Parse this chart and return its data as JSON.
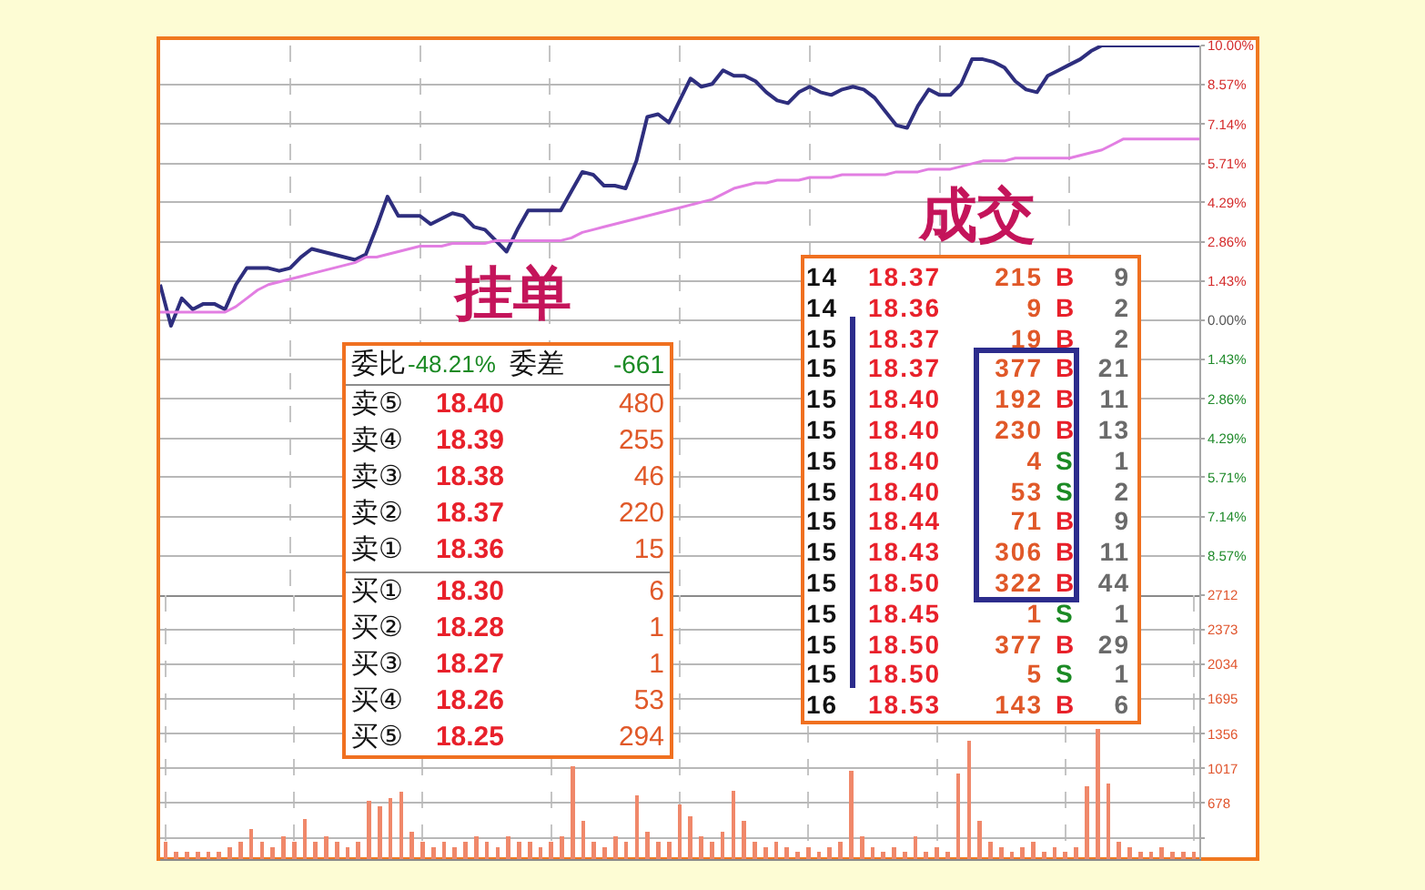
{
  "chart_data": [
    {
      "type": "line",
      "categories": [
        null,
        null,
        null,
        null,
        null,
        null,
        null,
        null,
        null,
        null,
        null,
        null,
        null,
        null,
        null,
        null,
        null,
        null,
        null,
        null,
        null,
        null,
        null,
        null,
        null,
        null,
        null,
        null,
        null,
        null,
        null,
        null,
        null,
        null,
        null,
        null,
        null,
        null,
        null,
        null,
        null,
        null,
        null,
        null,
        null,
        null,
        null,
        null,
        null,
        null,
        null,
        null,
        null,
        null,
        null,
        null,
        null,
        null,
        null,
        null,
        null,
        null,
        null,
        null,
        null,
        null,
        null,
        null,
        null,
        null,
        null,
        null,
        null,
        null,
        null,
        null,
        null,
        null,
        null,
        null,
        null,
        null,
        null,
        null,
        null,
        null,
        null,
        null,
        null,
        null,
        null,
        null,
        null,
        null,
        null,
        null,
        null
      ],
      "series": [
        {
          "color": "#2e2e7e",
          "values": [
            1.3,
            -0.2,
            0.8,
            0.4,
            0.6,
            0.6,
            0.4,
            1.3,
            1.9,
            1.9,
            1.9,
            1.8,
            1.9,
            2.3,
            2.6,
            2.5,
            2.4,
            2.3,
            2.2,
            2.4,
            3.4,
            4.5,
            3.8,
            3.8,
            3.8,
            3.5,
            3.7,
            3.9,
            3.8,
            3.4,
            3.3,
            2.9,
            2.5,
            3.3,
            4.0,
            4.0,
            4.0,
            4.0,
            4.7,
            5.4,
            5.3,
            4.9,
            4.9,
            4.8,
            5.8,
            7.4,
            7.5,
            7.2,
            8.0,
            8.8,
            8.5,
            8.6,
            9.1,
            8.9,
            8.9,
            8.7,
            8.3,
            8.0,
            7.9,
            8.3,
            8.5,
            8.3,
            8.2,
            8.4,
            8.5,
            8.4,
            8.1,
            7.6,
            7.1,
            7.0,
            7.8,
            8.4,
            8.2,
            8.2,
            8.6,
            9.5,
            9.5,
            9.4,
            9.2,
            8.7,
            8.4,
            8.3,
            8.9,
            9.1,
            9.3,
            9.5,
            9.8,
            10.0,
            10.0,
            10.0,
            10.0,
            10.0,
            10.0,
            10.0,
            10.0,
            10.0,
            10.0
          ]
        },
        {
          "color": "#e27ee2",
          "values": [
            0.3,
            0.3,
            0.3,
            0.3,
            0.3,
            0.3,
            0.3,
            0.5,
            0.8,
            1.1,
            1.3,
            1.4,
            1.5,
            1.6,
            1.7,
            1.8,
            1.9,
            2.0,
            2.1,
            2.3,
            2.3,
            2.4,
            2.5,
            2.6,
            2.7,
            2.7,
            2.7,
            2.8,
            2.8,
            2.8,
            2.8,
            2.9,
            2.9,
            2.9,
            2.9,
            2.9,
            2.9,
            2.9,
            3.0,
            3.2,
            3.3,
            3.4,
            3.5,
            3.6,
            3.7,
            3.8,
            3.9,
            4.0,
            4.1,
            4.2,
            4.3,
            4.4,
            4.6,
            4.8,
            4.9,
            5.0,
            5.0,
            5.1,
            5.1,
            5.1,
            5.2,
            5.2,
            5.2,
            5.3,
            5.3,
            5.3,
            5.3,
            5.3,
            5.4,
            5.4,
            5.4,
            5.5,
            5.5,
            5.5,
            5.6,
            5.7,
            5.8,
            5.8,
            5.8,
            5.9,
            5.9,
            5.9,
            5.9,
            5.9,
            5.9,
            6.0,
            6.1,
            6.2,
            6.4,
            6.6,
            6.6,
            6.6,
            6.6,
            6.6,
            6.6,
            6.6,
            6.6
          ]
        }
      ],
      "ylim": [
        -10,
        10
      ],
      "yticks": [
        {
          "value": -8.57,
          "label": "8.57%"
        },
        {
          "value": -7.14,
          "label": "7.14%"
        },
        {
          "value": -5.71,
          "label": "5.71%"
        },
        {
          "value": -4.29,
          "label": "4.29%"
        },
        {
          "value": -2.86,
          "label": "2.86%"
        },
        {
          "value": -1.43,
          "label": "1.43%"
        },
        {
          "value": 0,
          "label": "0.00%"
        },
        {
          "value": 1.43,
          "label": "1.43%"
        },
        {
          "value": 2.86,
          "label": "2.86%"
        },
        {
          "value": 4.29,
          "label": "4.29%"
        },
        {
          "value": 5.71,
          "label": "5.71%"
        },
        {
          "value": 7.14,
          "label": "7.14%"
        },
        {
          "value": 8.57,
          "label": "8.57%"
        },
        {
          "value": 10,
          "label": "10.00%"
        }
      ],
      "grid": true,
      "tick_labels": "y"
    },
    {
      "type": "bar",
      "categories": [
        null,
        null,
        null,
        null,
        null,
        null,
        null,
        null,
        null,
        null,
        null,
        null,
        null,
        null,
        null,
        null,
        null,
        null,
        null,
        null,
        null,
        null,
        null,
        null,
        null,
        null,
        null,
        null,
        null,
        null,
        null,
        null,
        null,
        null,
        null,
        null,
        null,
        null,
        null,
        null,
        null,
        null,
        null,
        null,
        null,
        null,
        null,
        null,
        null,
        null,
        null,
        null,
        null,
        null,
        null,
        null,
        null,
        null,
        null,
        null,
        null,
        null,
        null,
        null,
        null,
        null,
        null,
        null,
        null,
        null,
        null,
        null,
        null,
        null,
        null,
        null,
        null,
        null,
        null,
        null,
        null,
        null,
        null,
        null,
        null,
        null,
        null,
        null,
        null,
        null,
        null,
        null,
        null,
        null,
        null,
        null,
        null
      ],
      "values": [
        300,
        200,
        200,
        200,
        200,
        200,
        250,
        300,
        420,
        300,
        250,
        350,
        300,
        520,
        300,
        350,
        300,
        250,
        300,
        700,
        650,
        730,
        790,
        400,
        300,
        250,
        300,
        250,
        300,
        350,
        300,
        250,
        350,
        300,
        300,
        250,
        300,
        350,
        1040,
        500,
        300,
        250,
        350,
        300,
        750,
        400,
        300,
        300,
        660,
        550,
        350,
        300,
        400,
        800,
        500,
        300,
        250,
        300,
        250,
        200,
        250,
        200,
        250,
        300,
        990,
        350,
        250,
        200,
        250,
        200,
        350,
        200,
        250,
        200,
        970,
        1290,
        500,
        300,
        250,
        200,
        250,
        300,
        200,
        250,
        200,
        250,
        840,
        1400,
        870,
        300,
        250,
        200,
        200,
        250,
        200,
        200,
        200
      ],
      "color": "#f0886a",
      "ylim": [
        130,
        2712
      ],
      "yticks": [
        {
          "value": 339,
          "label": null
        },
        678,
        1017,
        1356,
        1695,
        2034,
        2373,
        2712
      ],
      "grid": true,
      "tick_labels": "y"
    },
    {
      "type": "other",
      "title": "挂单",
      "annotations": [
        "委比",
        "-48.21%",
        "委差",
        "-661"
      ],
      "categories": [
        "卖⑤",
        "卖④",
        "卖③",
        "卖②",
        "卖①",
        "买①",
        "买②",
        "买③",
        "买④",
        "买⑤"
      ],
      "series": [
        {
          "color": "#e8202a",
          "values": [
            null,
            null,
            null,
            null,
            null,
            null,
            null,
            null,
            null,
            null
          ],
          "value_labels": [
            "18.40",
            "18.39",
            "18.38",
            "18.37",
            "18.36",
            "18.30",
            "18.28",
            "18.27",
            "18.26",
            "18.25"
          ]
        },
        {
          "color": "#e05828",
          "values": [
            480,
            255,
            46,
            220,
            15,
            6,
            1,
            1,
            53,
            294
          ]
        }
      ],
      "data_labels": true
    },
    {
      "type": "other",
      "title": "成交",
      "categories": [
        "14",
        "14",
        "15",
        "15",
        "15",
        "15",
        "15",
        "15",
        "15",
        "15",
        "15",
        "15",
        "15",
        "15",
        "16"
      ],
      "series": [
        {
          "color": "#e8202a",
          "values": [
            null,
            null,
            null,
            null,
            null,
            null,
            null,
            null,
            null,
            null,
            null,
            null,
            null,
            null,
            null
          ],
          "value_labels": [
            "18.37",
            "18.36",
            "18.37",
            "18.37",
            "18.40",
            "18.40",
            "18.40",
            "18.40",
            "18.44",
            "18.43",
            "18.50",
            "18.45",
            "18.50",
            "18.50",
            "18.53"
          ]
        },
        {
          "color": "#e05828",
          "values": [
            215,
            9,
            19,
            377,
            192,
            230,
            4,
            53,
            71,
            306,
            322,
            1,
            377,
            5,
            143
          ]
        },
        {
          "values": [
            null,
            null,
            null,
            null,
            null,
            null,
            null,
            null,
            null,
            null,
            null,
            null,
            null,
            null,
            null
          ],
          "value_labels": [
            "B",
            "B",
            "B",
            "B",
            "B",
            "B",
            "S",
            "S",
            "B",
            "B",
            "B",
            "S",
            "B",
            "S",
            "B"
          ],
          "colors": [
            "#e8202a",
            "#e8202a",
            "#e8202a",
            "#e8202a",
            "#e8202a",
            "#e8202a",
            "#1b8a24",
            "#1b8a24",
            "#e8202a",
            "#e8202a",
            "#e8202a",
            "#1b8a24",
            "#e8202a",
            "#1b8a24",
            "#e8202a"
          ]
        },
        {
          "color": "#6a6a6a",
          "values": [
            9,
            2,
            2,
            21,
            11,
            13,
            1,
            2,
            9,
            11,
            44,
            1,
            29,
            1,
            6
          ]
        }
      ],
      "data_labels": true
    }
  ]
}
